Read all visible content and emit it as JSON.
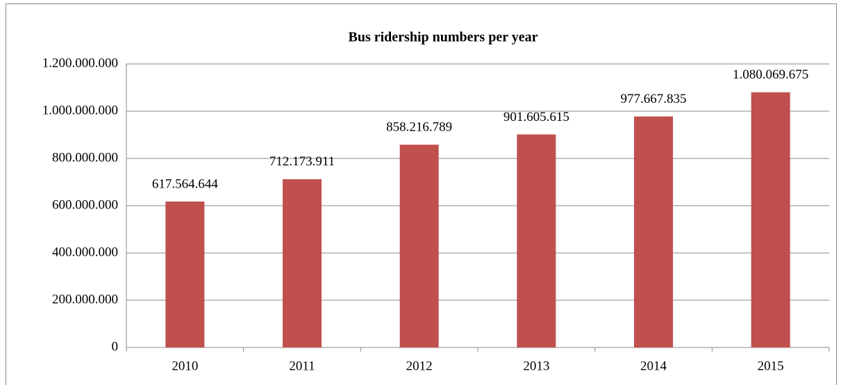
{
  "chart_data": {
    "type": "bar",
    "title": "Bus ridership numbers per year",
    "categories": [
      "2010",
      "2011",
      "2012",
      "2013",
      "2014",
      "2015"
    ],
    "values": [
      617564644,
      712173911,
      858216789,
      901605615,
      977667835,
      1080069675
    ],
    "value_labels": [
      "617.564.644",
      "712.173.911",
      "858.216.789",
      "901.605.615",
      "977.667.835",
      "1.080.069.675"
    ],
    "color": "#c0504d",
    "ylim": [
      0,
      1200000000
    ],
    "yticks": [
      0,
      {
        "value": 200000000,
        "label": "200.000.000"
      },
      {
        "value": 400000000,
        "label": "400.000.000"
      },
      {
        "value": 600000000,
        "label": "600.000.000"
      },
      {
        "value": 800000000,
        "label": "800.000.000"
      },
      {
        "value": 1000000000,
        "label": "1.000.000.000"
      },
      {
        "value": 1200000000,
        "label": "1.200.000.000"
      }
    ],
    "grid": true
  }
}
